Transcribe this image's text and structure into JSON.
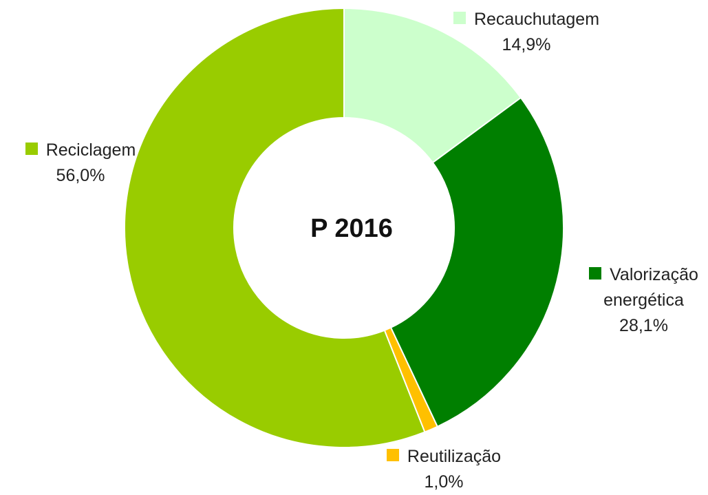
{
  "chart_data": {
    "type": "donut",
    "title": "P 2016",
    "categories": [
      "Recauchutagem",
      "Valorização energética",
      "Reutilização",
      "Reciclagem"
    ],
    "values": [
      14.9,
      28.1,
      1.0,
      56.0
    ],
    "value_labels": [
      "14,9%",
      "28,1%",
      "1,0%",
      "56,0%"
    ],
    "colors": [
      "#ccffcc",
      "#007f00",
      "#ffc000",
      "#99cc00"
    ]
  }
}
